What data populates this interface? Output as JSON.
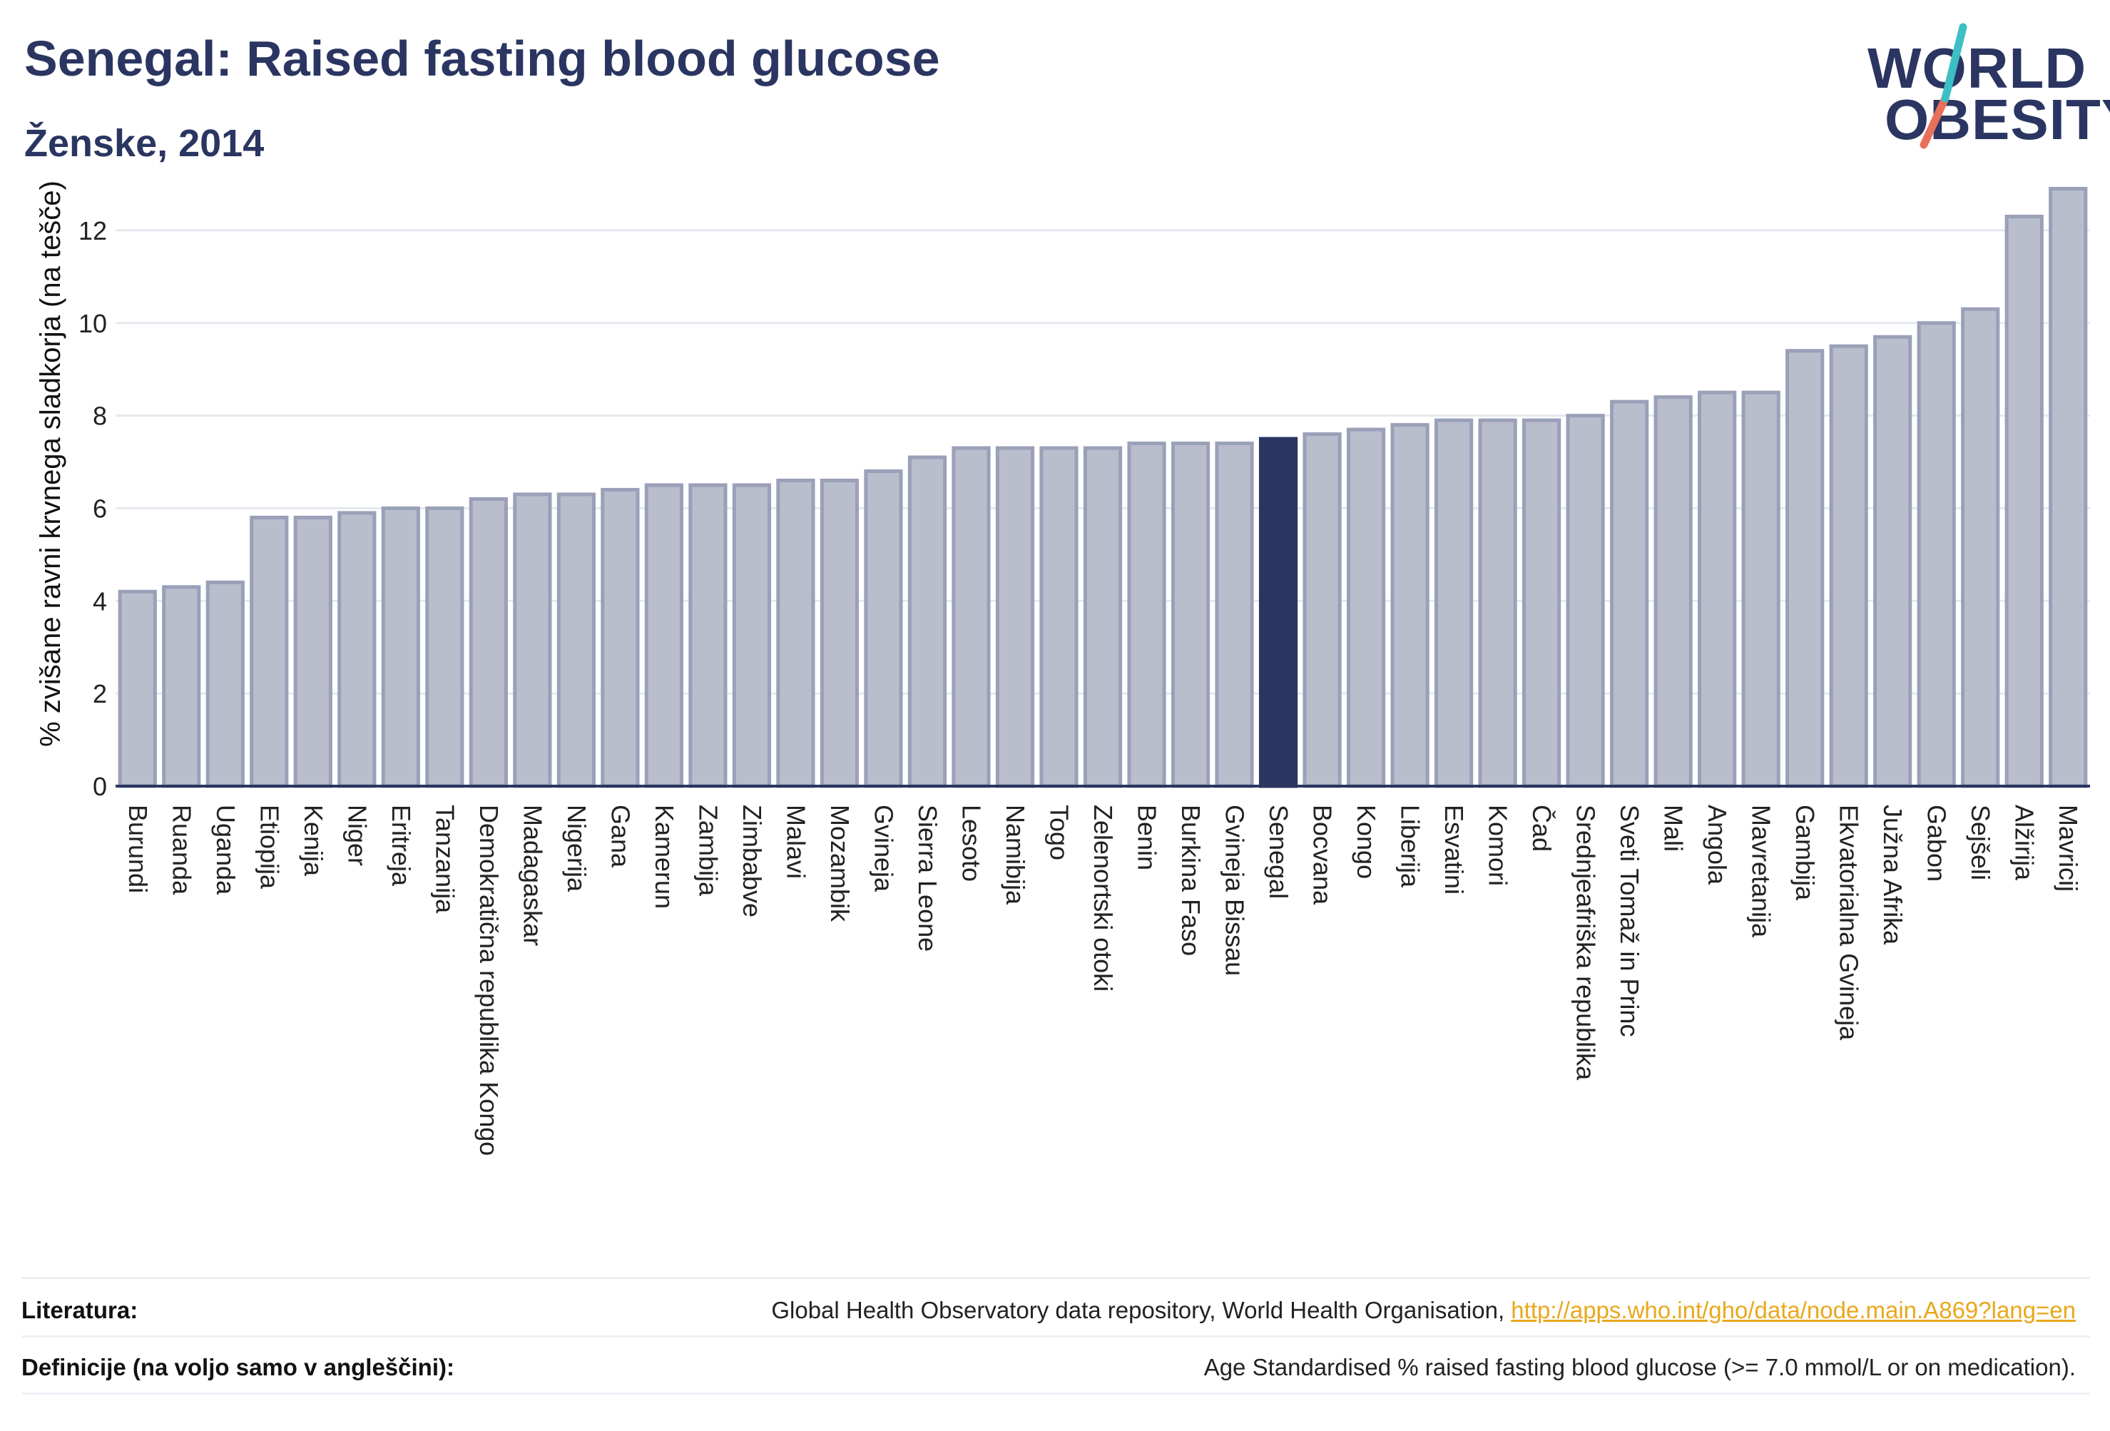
{
  "header": {
    "title": "Senegal: Raised fasting blood glucose",
    "subtitle": "Ženske, 2014"
  },
  "logo": {
    "line1": "WORLD",
    "line2": "OBESITY",
    "accent_colors": [
      "#3dbfc4",
      "#e8705a"
    ]
  },
  "chart_data": {
    "type": "bar",
    "ylabel": "% zvišane ravni krvnega sladkorja (na tešče)",
    "ylim": [
      0,
      13
    ],
    "yticks": [
      0,
      2,
      4,
      6,
      8,
      10,
      12
    ],
    "grid": true,
    "highlight": "Senegal",
    "colors": {
      "bar": "#b9bdcc",
      "bar_edge": "#9aa0b8",
      "highlight": "#2b3561"
    },
    "categories": [
      "Burundi",
      "Ruanda",
      "Uganda",
      "Etiopija",
      "Kenija",
      "Niger",
      "Eritreja",
      "Tanzanija",
      "Demokratična republika Kongo",
      "Madagaskar",
      "Nigerija",
      "Gana",
      "Kamerun",
      "Zambija",
      "Zimbabve",
      "Malavi",
      "Mozambik",
      "Gvineja",
      "Sierra Leone",
      "Lesoto",
      "Namibija",
      "Togo",
      "Zelenortski otoki",
      "Benin",
      "Burkina Faso",
      "Gvineja Bissau",
      "Senegal",
      "Bocvana",
      "Kongo",
      "Liberija",
      "Esvatini",
      "Komori",
      "Čad",
      "Srednjeafriška republika",
      "Sveti Tomaž in Princ",
      "Mali",
      "Angola",
      "Mavretanija",
      "Gambija",
      "Ekvatorialna Gvineja",
      "Južna Afrika",
      "Gabon",
      "Sejšeli",
      "Alžirija",
      "Mavricij"
    ],
    "values": [
      4.2,
      4.3,
      4.4,
      5.8,
      5.8,
      5.9,
      6.0,
      6.0,
      6.2,
      6.3,
      6.3,
      6.4,
      6.5,
      6.5,
      6.5,
      6.6,
      6.6,
      6.8,
      7.1,
      7.3,
      7.3,
      7.3,
      7.3,
      7.4,
      7.4,
      7.4,
      7.5,
      7.6,
      7.7,
      7.8,
      7.9,
      7.9,
      7.9,
      8.0,
      8.3,
      8.4,
      8.5,
      8.5,
      9.4,
      9.5,
      9.7,
      10.0,
      10.3,
      12.3,
      12.9
    ]
  },
  "footer": {
    "references_label": "Literatura:",
    "references_text": "Global Health Observatory data repository, World Health Organisation, ",
    "references_link": "http://apps.who.int/gho/data/node.main.A869?lang=en",
    "definitions_label": "Definicije (na voljo samo v angleščini):",
    "definitions_text": "Age Standardised % raised fasting blood glucose (>= 7.0 mmol/L or on medication)."
  }
}
